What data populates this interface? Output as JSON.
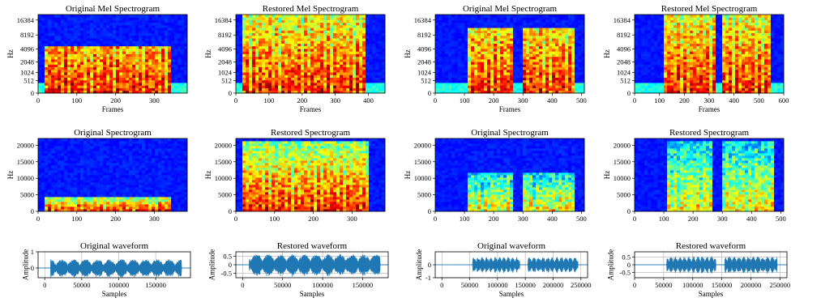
{
  "figure": {
    "layout": "3 rows x 4 columns of subplots"
  },
  "chart_data": [
    {
      "id": "p0",
      "type": "heatmap",
      "kind": "mel",
      "title": "Original Mel Spectrogram",
      "xlabel": "Frames",
      "ylabel": "Hz",
      "xlim": [
        0,
        385
      ],
      "ylim": [
        0,
        21000
      ],
      "xticks": [
        0,
        100,
        200,
        300
      ],
      "yticks": [
        0,
        512,
        1024,
        2048,
        4096,
        8192,
        16384
      ],
      "y_scale": "mel",
      "colormap": "jet",
      "speech_segments": [
        [
          15,
          345
        ]
      ],
      "band_limit_hz": 4500,
      "style": "dense"
    },
    {
      "id": "p1",
      "type": "heatmap",
      "kind": "mel",
      "title": "Restored Mel Spectrogram",
      "xlabel": "Frames",
      "ylabel": "Hz",
      "xlim": [
        0,
        450
      ],
      "ylim": [
        0,
        21000
      ],
      "xticks": [
        0,
        100,
        200,
        300,
        400
      ],
      "yticks": [
        0,
        512,
        1024,
        2048,
        4096,
        8192,
        16384
      ],
      "y_scale": "mel",
      "colormap": "jet",
      "speech_segments": [
        [
          15,
          395
        ]
      ],
      "band_limit_hz": 21000,
      "style": "dense"
    },
    {
      "id": "p2",
      "type": "heatmap",
      "kind": "mel",
      "title": "Original Mel Spectrogram",
      "xlabel": "Frames",
      "ylabel": "Hz",
      "xlim": [
        0,
        510
      ],
      "ylim": [
        0,
        21000
      ],
      "xticks": [
        0,
        100,
        200,
        300,
        400,
        500
      ],
      "yticks": [
        0,
        512,
        1024,
        2048,
        4096,
        8192,
        16384
      ],
      "y_scale": "mel",
      "colormap": "jet",
      "speech_segments": [
        [
          110,
          265
        ],
        [
          300,
          480
        ]
      ],
      "band_limit_hz": 12000,
      "style": "dense"
    },
    {
      "id": "p3",
      "type": "heatmap",
      "kind": "mel",
      "title": "Restored Mel Spectrogram",
      "xlabel": "Frames",
      "ylabel": "Hz",
      "xlim": [
        0,
        600
      ],
      "ylim": [
        0,
        21000
      ],
      "xticks": [
        0,
        100,
        200,
        300,
        400,
        500,
        600
      ],
      "yticks": [
        0,
        512,
        1024,
        2048,
        4096,
        8192,
        16384
      ],
      "y_scale": "mel",
      "colormap": "jet",
      "speech_segments": [
        [
          120,
          330
        ],
        [
          350,
          545
        ]
      ],
      "band_limit_hz": 21000,
      "style": "dense"
    },
    {
      "id": "p4",
      "type": "heatmap",
      "kind": "linear",
      "title": "Original Spectrogram",
      "xlabel": "",
      "ylabel": "Hz",
      "xlim": [
        0,
        385
      ],
      "ylim": [
        0,
        22050
      ],
      "xticks": [
        0,
        100,
        200,
        300
      ],
      "yticks": [
        0,
        5000,
        10000,
        15000,
        20000
      ],
      "y_scale": "linear",
      "colormap": "jet",
      "speech_segments": [
        [
          15,
          345
        ]
      ],
      "band_limit_hz": 4500,
      "style": "dense"
    },
    {
      "id": "p5",
      "type": "heatmap",
      "kind": "linear",
      "title": "Restored Spectrogram",
      "xlabel": "",
      "ylabel": "Hz",
      "xlim": [
        0,
        385
      ],
      "ylim": [
        0,
        22050
      ],
      "xticks": [
        0,
        100,
        200,
        300
      ],
      "yticks": [
        0,
        5000,
        10000,
        15000,
        20000
      ],
      "y_scale": "linear",
      "colormap": "jet",
      "speech_segments": [
        [
          15,
          345
        ]
      ],
      "band_limit_hz": 21000,
      "style": "dense"
    },
    {
      "id": "p6",
      "type": "heatmap",
      "kind": "linear",
      "title": "Original Spectrogram",
      "xlabel": "",
      "ylabel": "Hz",
      "xlim": [
        0,
        510
      ],
      "ylim": [
        0,
        22050
      ],
      "xticks": [
        0,
        100,
        200,
        300,
        400,
        500
      ],
      "yticks": [
        0,
        5000,
        10000,
        15000,
        20000
      ],
      "y_scale": "linear",
      "colormap": "jet",
      "speech_segments": [
        [
          110,
          265
        ],
        [
          300,
          480
        ]
      ],
      "band_limit_hz": 12000,
      "style": "sparse"
    },
    {
      "id": "p7",
      "type": "heatmap",
      "kind": "linear",
      "title": "Restored Spectrogram",
      "xlabel": "",
      "ylabel": "Hz",
      "xlim": [
        0,
        510
      ],
      "ylim": [
        0,
        22050
      ],
      "xticks": [
        0,
        100,
        200,
        300,
        400,
        500
      ],
      "yticks": [
        0,
        5000,
        10000,
        15000,
        20000
      ],
      "y_scale": "linear",
      "colormap": "jet",
      "speech_segments": [
        [
          110,
          265
        ],
        [
          300,
          480
        ]
      ],
      "band_limit_hz": 21000,
      "style": "sparse"
    },
    {
      "id": "p8",
      "type": "line",
      "kind": "wave",
      "title": "Original waveform",
      "xlabel": "Samples",
      "ylabel": "Amplitude",
      "xlim": [
        -9000,
        197000
      ],
      "ylim": [
        -0.6,
        1.0
      ],
      "xticks": [
        0,
        50000,
        100000,
        150000
      ],
      "yticks": [
        0,
        1
      ],
      "grid": true,
      "color": "#1f77b4",
      "speech_segments": [
        [
          8000,
          185000
        ]
      ],
      "peak_amplitude": 0.55
    },
    {
      "id": "p9",
      "type": "line",
      "kind": "wave",
      "title": "Restored waveform",
      "xlabel": "Samples",
      "ylabel": "Amplitude",
      "xlim": [
        -8500,
        182000
      ],
      "ylim": [
        -0.75,
        0.75
      ],
      "xticks": [
        0,
        50000,
        100000,
        150000
      ],
      "yticks": [
        -0.5,
        0,
        0.5
      ],
      "grid": true,
      "color": "#1f77b4",
      "speech_segments": [
        [
          8000,
          172000
        ]
      ],
      "peak_amplitude": 0.62
    },
    {
      "id": "p10",
      "type": "line",
      "kind": "wave",
      "title": "Original waveform",
      "xlabel": "Samples",
      "ylabel": "Amplitude",
      "xlim": [
        -12000,
        262000
      ],
      "ylim": [
        -1.0,
        1.0
      ],
      "xticks": [
        0,
        50000,
        100000,
        150000,
        200000,
        250000
      ],
      "yticks": [
        -1,
        0
      ],
      "grid": true,
      "color": "#1f77b4",
      "speech_segments": [
        [
          55000,
          140000
        ],
        [
          155000,
          245000
        ]
      ],
      "peak_amplitude": 0.6
    },
    {
      "id": "p11",
      "type": "line",
      "kind": "wave",
      "title": "Restored waveform",
      "xlabel": "Samples",
      "ylabel": "Amplitude",
      "xlim": [
        0,
        262000
      ],
      "ylim": [
        -0.85,
        0.85
      ],
      "xticks": [
        0,
        50000,
        100000,
        150000,
        200000,
        250000
      ],
      "yticks": [
        -0.5,
        0,
        0.5
      ],
      "grid": true,
      "color": "#1f77b4",
      "speech_segments": [
        [
          55000,
          140000
        ],
        [
          155000,
          245000
        ]
      ],
      "peak_amplitude": 0.55
    }
  ]
}
